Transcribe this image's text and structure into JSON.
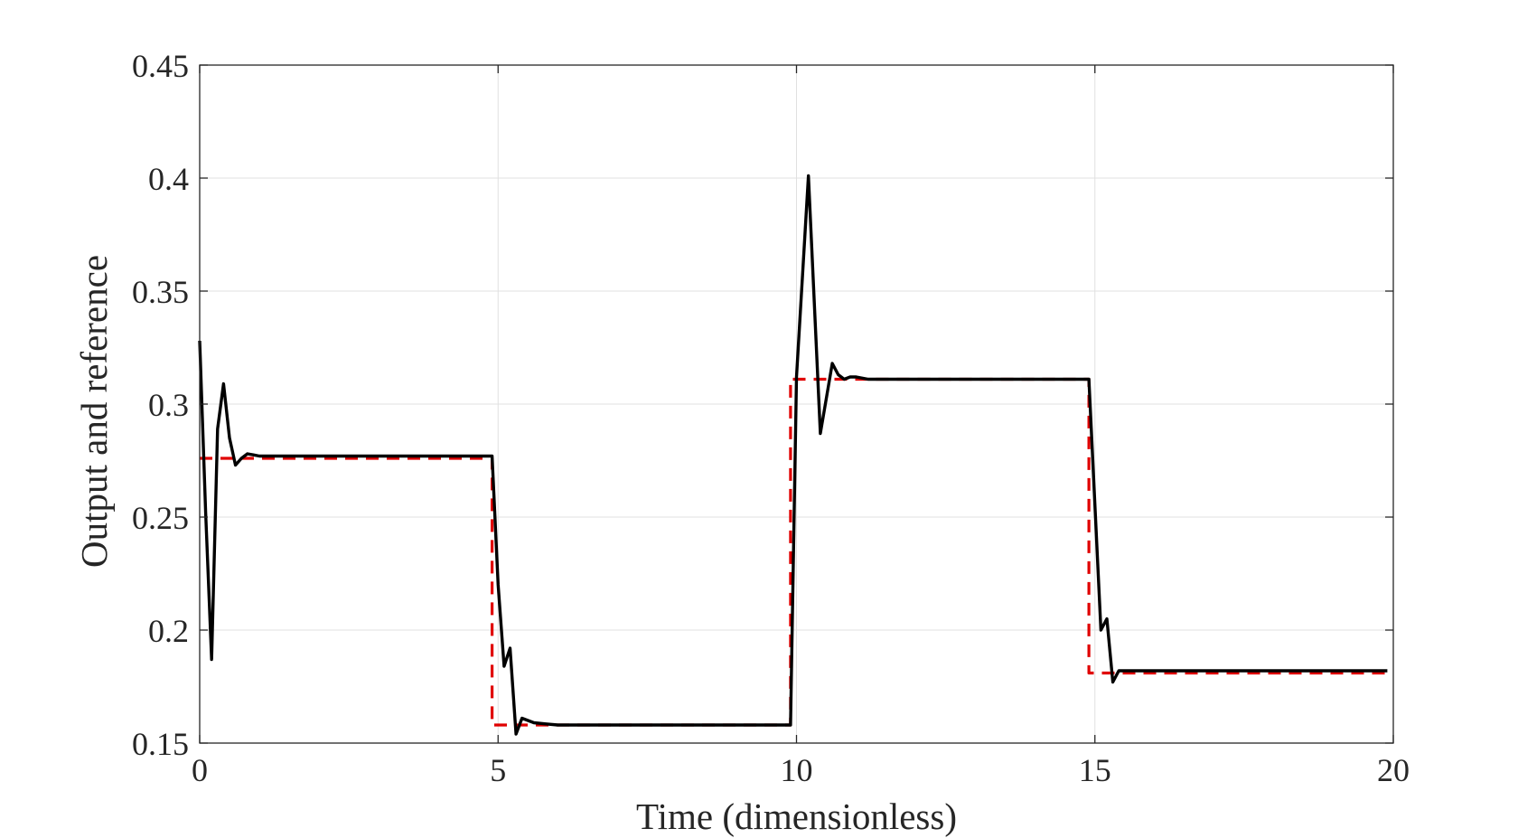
{
  "chart_data": {
    "type": "line",
    "title": "",
    "xlabel": "Time (dimensionless)",
    "ylabel": "Output and reference",
    "xlim": [
      0,
      20
    ],
    "ylim": [
      0.15,
      0.45
    ],
    "xticks": [
      0,
      5,
      10,
      15,
      20
    ],
    "xtick_labels": [
      "0",
      "5",
      "10",
      "15",
      "20"
    ],
    "yticks": [
      0.15,
      0.2,
      0.25,
      0.3,
      0.35,
      0.4,
      0.45
    ],
    "ytick_labels": [
      "0.15",
      "0.2",
      "0.25",
      "0.3",
      "0.35",
      "0.4",
      "0.45"
    ],
    "grid": true,
    "legend": "none",
    "series": [
      {
        "color": "#000000",
        "style": "solid",
        "x": [
          0,
          0.1,
          0.2,
          0.3,
          0.4,
          0.5,
          0.6,
          0.7,
          0.8,
          0.9,
          1.0,
          1.5,
          2,
          3,
          4,
          4.9,
          5.0,
          5.1,
          5.2,
          5.3,
          5.4,
          5.5,
          5.6,
          5.8,
          6.0,
          7,
          8,
          9,
          9.9,
          10.0,
          10.2,
          10.4,
          10.6,
          10.7,
          10.8,
          10.9,
          11.0,
          11.2,
          12,
          13,
          14,
          14.9,
          15.0,
          15.1,
          15.2,
          15.3,
          15.4,
          15.5,
          15.7,
          16,
          17,
          18,
          19,
          19.9
        ],
        "y": [
          0.328,
          0.252,
          0.187,
          0.289,
          0.309,
          0.285,
          0.273,
          0.276,
          0.278,
          0.2775,
          0.277,
          0.277,
          0.277,
          0.277,
          0.277,
          0.277,
          0.22,
          0.184,
          0.192,
          0.154,
          0.161,
          0.16,
          0.159,
          0.1585,
          0.158,
          0.158,
          0.158,
          0.158,
          0.158,
          0.312,
          0.401,
          0.287,
          0.318,
          0.313,
          0.311,
          0.312,
          0.312,
          0.311,
          0.311,
          0.311,
          0.311,
          0.311,
          0.255,
          0.2,
          0.205,
          0.177,
          0.182,
          0.182,
          0.182,
          0.182,
          0.182,
          0.182,
          0.182,
          0.182
        ]
      },
      {
        "color": "#e00000",
        "style": "dashed",
        "x": [
          0,
          4.9,
          4.9,
          9.9,
          9.9,
          14.9,
          14.9,
          19.9
        ],
        "y": [
          0.276,
          0.276,
          0.158,
          0.158,
          0.311,
          0.311,
          0.181,
          0.181
        ]
      }
    ]
  }
}
